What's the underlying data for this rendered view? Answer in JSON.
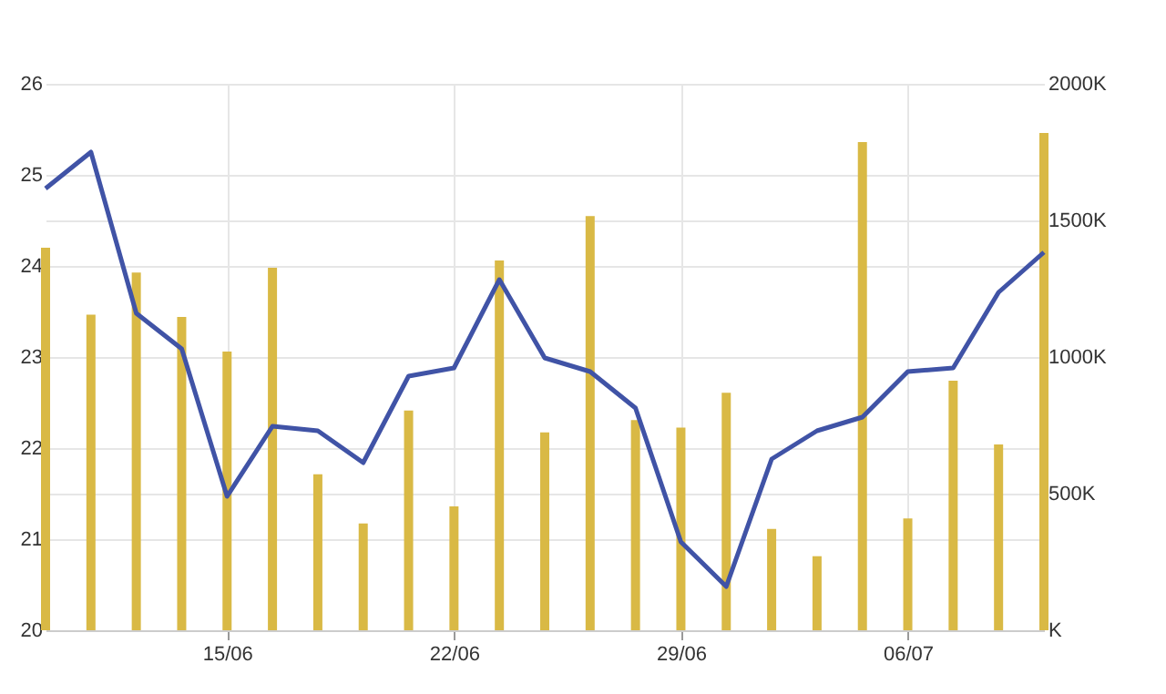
{
  "chart_data": {
    "type": "line",
    "categories": [
      null,
      null,
      null,
      null,
      "15/06",
      null,
      null,
      null,
      null,
      "22/06",
      null,
      null,
      null,
      null,
      "29/06",
      null,
      null,
      null,
      null,
      "06/07",
      null,
      null,
      null
    ],
    "series": [
      {
        "type": "bar",
        "axis": "y2",
        "color": "#d9b945",
        "values": [
          1400,
          1155,
          1309,
          1147,
          1020,
          1327,
          571,
          391,
          804,
          453,
          1353,
          724,
          1516,
          769,
          742,
          869,
          371,
          271,
          1787,
          409,
          913,
          680,
          1820
        ]
      },
      {
        "axis": "y",
        "color": "#4053a6",
        "values": [
          24.85,
          25.25,
          23.48,
          23.09,
          21.47,
          22.24,
          22.19,
          21.84,
          22.79,
          22.88,
          23.85,
          22.99,
          22.84,
          22.44,
          20.97,
          20.48,
          21.88,
          22.19,
          22.34,
          22.84,
          22.88,
          23.71,
          24.15
        ]
      }
    ],
    "ylim": [
      20,
      26
    ],
    "yticks": [
      20,
      21,
      22,
      23,
      24,
      25,
      26
    ],
    "y2lim": [
      0,
      2000
    ],
    "y2ticks": [
      {
        "value": 0,
        "label": "K"
      },
      {
        "value": 500,
        "label": "500K"
      },
      {
        "value": 1000,
        "label": "1000K"
      },
      {
        "value": 1500,
        "label": "1500K"
      },
      {
        "value": 2000,
        "label": "2000K"
      }
    ],
    "grid": true,
    "marker": "none",
    "line_style": "solid"
  }
}
